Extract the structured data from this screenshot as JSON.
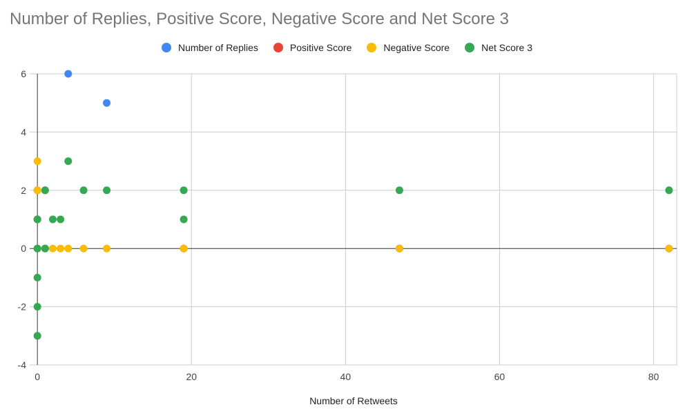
{
  "chart_data": {
    "type": "scatter",
    "title": "Number of Replies, Positive Score, Negative Score and Net Score 3",
    "xlabel": "Number of Retweets",
    "ylabel": "",
    "xlim": [
      -1,
      83
    ],
    "ylim": [
      -4,
      6
    ],
    "x_ticks": [
      "0",
      "20",
      "40",
      "60",
      "80"
    ],
    "y_ticks": [
      "-4",
      "-2",
      "0",
      "2",
      "4",
      "6"
    ],
    "grid": true,
    "legend_position": "top",
    "series": [
      {
        "name": "Number of Replies",
        "color": "#4285F4",
        "points": [
          [
            4,
            6
          ],
          [
            9,
            5
          ],
          [
            0,
            0
          ],
          [
            0,
            1
          ],
          [
            1,
            0
          ],
          [
            19,
            0
          ],
          [
            47,
            0
          ],
          [
            82,
            0
          ]
        ]
      },
      {
        "name": "Positive Score",
        "color": "#EA4335",
        "points": [
          [
            0,
            2
          ],
          [
            1,
            2
          ],
          [
            0,
            1
          ],
          [
            19,
            0
          ],
          [
            47,
            0
          ]
        ]
      },
      {
        "name": "Negative Score",
        "color": "#FBBC04",
        "points": [
          [
            0,
            3
          ],
          [
            0,
            2
          ],
          [
            1,
            2
          ],
          [
            0,
            0
          ],
          [
            1,
            0
          ],
          [
            2,
            0
          ],
          [
            3,
            0
          ],
          [
            4,
            0
          ],
          [
            6,
            0
          ],
          [
            9,
            0
          ],
          [
            19,
            0
          ],
          [
            47,
            0
          ],
          [
            82,
            0
          ]
        ]
      },
      {
        "name": "Net Score 3",
        "color": "#34A853",
        "points": [
          [
            0,
            1
          ],
          [
            0,
            0
          ],
          [
            0,
            -1
          ],
          [
            0,
            -2
          ],
          [
            0,
            -3
          ],
          [
            1,
            2
          ],
          [
            1,
            0
          ],
          [
            2,
            1
          ],
          [
            3,
            1
          ],
          [
            4,
            3
          ],
          [
            6,
            2
          ],
          [
            9,
            2
          ],
          [
            19,
            2
          ],
          [
            19,
            1
          ],
          [
            47,
            2
          ],
          [
            82,
            2
          ]
        ]
      }
    ]
  }
}
